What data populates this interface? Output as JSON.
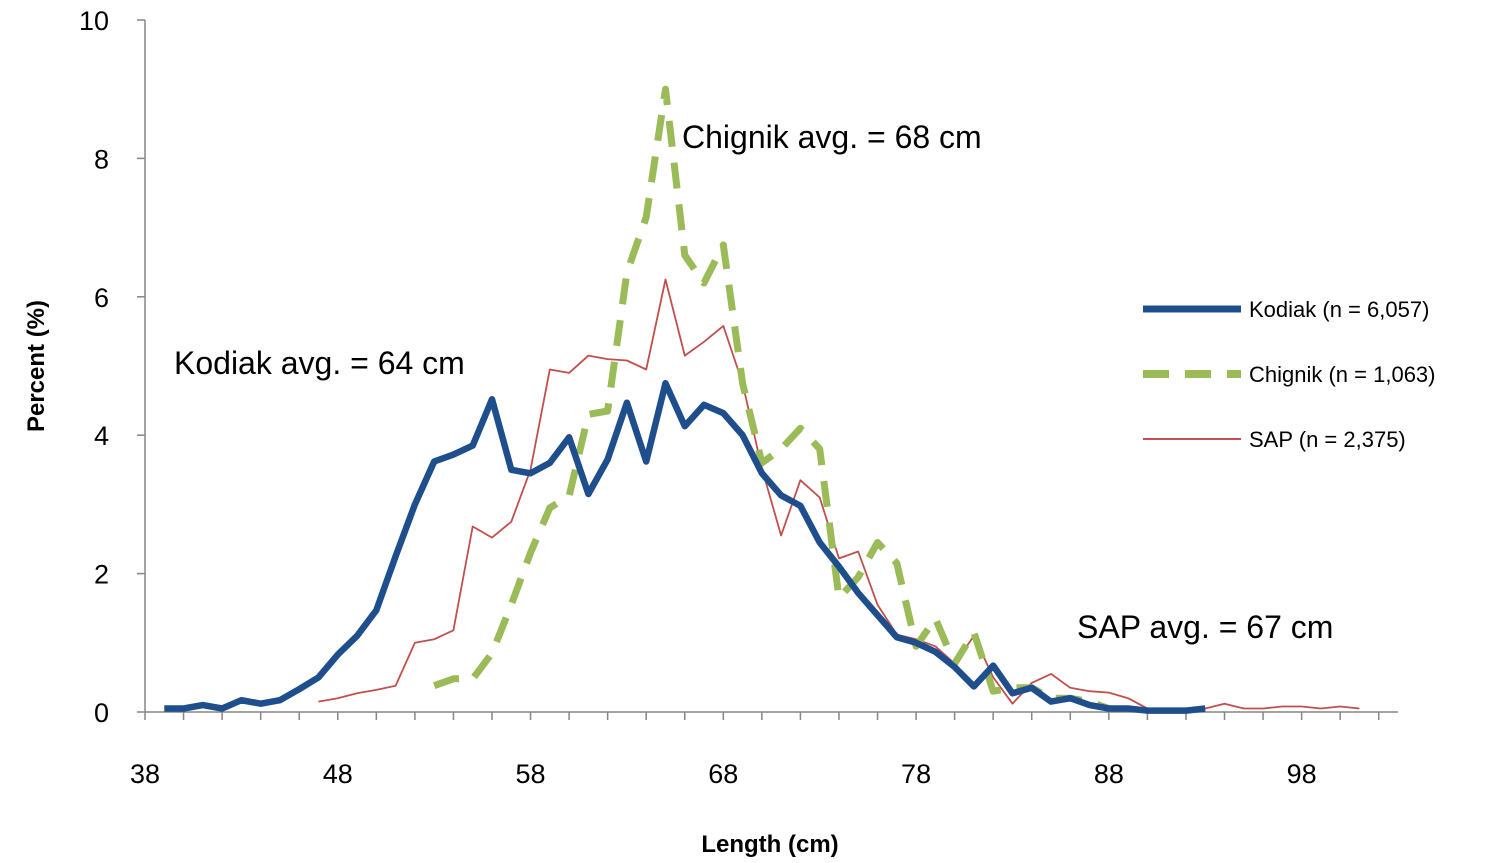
{
  "chart_data": {
    "type": "line",
    "xlabel": "Length (cm)",
    "ylabel": "Percent (%)",
    "xlim": [
      38,
      103
    ],
    "ylim": [
      0,
      10
    ],
    "x_ticks": [
      "38",
      "48",
      "58",
      "68",
      "78",
      "88",
      "98"
    ],
    "y_ticks": [
      "0",
      "2",
      "4",
      "6",
      "8",
      "10"
    ],
    "grid": false,
    "legend_position": "right",
    "annotations": [
      "Kodiak avg. = 64 cm",
      "Chignik avg. = 68 cm",
      "SAP avg. = 67 cm"
    ],
    "series": [
      {
        "name": "Kodiak (n = 6,057)",
        "color": "#1f4e8c",
        "style": "solid-thick",
        "points": [
          [
            39,
            0.05
          ],
          [
            40,
            0.05
          ],
          [
            41,
            0.1
          ],
          [
            42,
            0.05
          ],
          [
            43,
            0.17
          ],
          [
            44,
            0.12
          ],
          [
            45,
            0.17
          ],
          [
            46,
            0.33
          ],
          [
            47,
            0.5
          ],
          [
            48,
            0.83
          ],
          [
            49,
            1.1
          ],
          [
            50,
            1.47
          ],
          [
            51,
            2.25
          ],
          [
            52,
            3.0
          ],
          [
            53,
            3.62
          ],
          [
            54,
            3.72
          ],
          [
            55,
            3.85
          ],
          [
            56,
            4.52
          ],
          [
            57,
            3.5
          ],
          [
            58,
            3.45
          ],
          [
            59,
            3.6
          ],
          [
            60,
            3.97
          ],
          [
            61,
            3.15
          ],
          [
            62,
            3.65
          ],
          [
            63,
            4.47
          ],
          [
            64,
            3.62
          ],
          [
            65,
            4.75
          ],
          [
            66,
            4.13
          ],
          [
            67,
            4.44
          ],
          [
            68,
            4.32
          ],
          [
            69,
            4.0
          ],
          [
            70,
            3.45
          ],
          [
            71,
            3.13
          ],
          [
            72,
            2.98
          ],
          [
            73,
            2.45
          ],
          [
            74,
            2.1
          ],
          [
            75,
            1.72
          ],
          [
            76,
            1.4
          ],
          [
            77,
            1.08
          ],
          [
            78,
            1.0
          ],
          [
            79,
            0.87
          ],
          [
            80,
            0.65
          ],
          [
            81,
            0.37
          ],
          [
            82,
            0.67
          ],
          [
            83,
            0.27
          ],
          [
            84,
            0.35
          ],
          [
            85,
            0.15
          ],
          [
            86,
            0.2
          ],
          [
            87,
            0.1
          ],
          [
            88,
            0.05
          ],
          [
            89,
            0.05
          ],
          [
            90,
            0.02
          ],
          [
            91,
            0.02
          ],
          [
            92,
            0.02
          ],
          [
            93,
            0.05
          ]
        ]
      },
      {
        "name": "Chignik (n = 1,063)",
        "color": "#9bbb59",
        "style": "dashed-thick",
        "points": [
          [
            53,
            0.38
          ],
          [
            54,
            0.48
          ],
          [
            55,
            0.48
          ],
          [
            56,
            0.85
          ],
          [
            57,
            1.55
          ],
          [
            58,
            2.3
          ],
          [
            59,
            2.95
          ],
          [
            60,
            3.12
          ],
          [
            61,
            4.3
          ],
          [
            62,
            4.35
          ],
          [
            63,
            6.35
          ],
          [
            64,
            7.15
          ],
          [
            65,
            9.0
          ],
          [
            66,
            6.6
          ],
          [
            67,
            6.2
          ],
          [
            68,
            6.75
          ],
          [
            69,
            4.75
          ],
          [
            70,
            3.6
          ],
          [
            71,
            3.8
          ],
          [
            72,
            4.1
          ],
          [
            73,
            3.8
          ],
          [
            74,
            1.65
          ],
          [
            75,
            1.95
          ],
          [
            76,
            2.45
          ],
          [
            77,
            2.15
          ],
          [
            78,
            0.95
          ],
          [
            79,
            1.35
          ],
          [
            80,
            0.7
          ],
          [
            81,
            1.15
          ],
          [
            82,
            0.3
          ],
          [
            83,
            0.35
          ],
          [
            84,
            0.35
          ],
          [
            85,
            0.2
          ],
          [
            86,
            0.2
          ],
          [
            87,
            0.15
          ],
          [
            88,
            0.05
          ]
        ]
      },
      {
        "name": "SAP (n = 2,375)",
        "color": "#c0504d",
        "style": "solid-thin",
        "points": [
          [
            47,
            0.15
          ],
          [
            48,
            0.2
          ],
          [
            49,
            0.27
          ],
          [
            50,
            0.32
          ],
          [
            51,
            0.38
          ],
          [
            52,
            1.0
          ],
          [
            53,
            1.05
          ],
          [
            54,
            1.18
          ],
          [
            55,
            2.68
          ],
          [
            56,
            2.52
          ],
          [
            57,
            2.75
          ],
          [
            58,
            3.5
          ],
          [
            59,
            4.95
          ],
          [
            60,
            4.9
          ],
          [
            61,
            5.15
          ],
          [
            62,
            5.1
          ],
          [
            63,
            5.08
          ],
          [
            64,
            4.95
          ],
          [
            65,
            6.25
          ],
          [
            66,
            5.15
          ],
          [
            67,
            5.35
          ],
          [
            68,
            5.58
          ],
          [
            69,
            4.75
          ],
          [
            70,
            3.52
          ],
          [
            71,
            2.55
          ],
          [
            72,
            3.35
          ],
          [
            73,
            3.1
          ],
          [
            74,
            2.22
          ],
          [
            75,
            2.32
          ],
          [
            76,
            1.55
          ],
          [
            77,
            1.12
          ],
          [
            78,
            1.05
          ],
          [
            79,
            0.95
          ],
          [
            80,
            0.7
          ],
          [
            81,
            1.1
          ],
          [
            82,
            0.5
          ],
          [
            83,
            0.12
          ],
          [
            84,
            0.42
          ],
          [
            85,
            0.55
          ],
          [
            86,
            0.35
          ],
          [
            87,
            0.3
          ],
          [
            88,
            0.28
          ],
          [
            89,
            0.2
          ],
          [
            90,
            0.05
          ],
          [
            91,
            0.05
          ],
          [
            92,
            0.05
          ],
          [
            93,
            0.05
          ],
          [
            94,
            0.12
          ],
          [
            95,
            0.05
          ],
          [
            96,
            0.05
          ],
          [
            97,
            0.08
          ],
          [
            98,
            0.08
          ],
          [
            99,
            0.05
          ],
          [
            100,
            0.08
          ],
          [
            101,
            0.05
          ]
        ]
      }
    ]
  }
}
